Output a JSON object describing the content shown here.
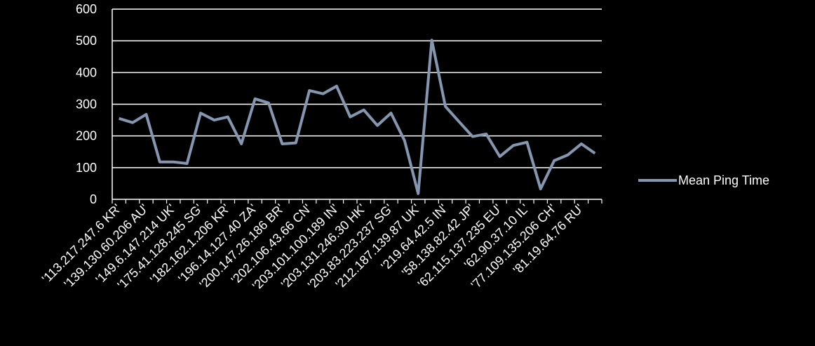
{
  "chart_data": {
    "type": "line",
    "categories": [
      "'113.217.247.6 KR'",
      null,
      "'139.130.60.206 AU'",
      null,
      "'149.6.147.214 UK'",
      null,
      "'175.41.128.245 SG'",
      null,
      "'182.162.1.206 KR'",
      null,
      "'196.14.127.40 ZA'",
      null,
      "'200.147.26.186 BR'",
      null,
      "'202.106.43.66 CN'",
      null,
      "'203.101.100.189 IN'",
      null,
      "'203.131.246.30 HK'",
      null,
      "'203.83.223.237 SG'",
      null,
      "'212.187.139.87 UK'",
      null,
      "'219.64.42.5 IN'",
      null,
      "'58.138.82.42 JP'",
      null,
      "'62.115.137.235 EU'",
      null,
      "'62.90.37.10 IL'",
      null,
      "'77.109.135.206 CH'",
      null,
      "'81.19.64.76 RU'",
      null
    ],
    "series": [
      {
        "name": "Mean Ping Time",
        "color": "#8496b0",
        "values": [
          255,
          242,
          268,
          118,
          118,
          113,
          272,
          250,
          260,
          175,
          317,
          304,
          175,
          178,
          343,
          333,
          357,
          260,
          282,
          233,
          272,
          185,
          18,
          502,
          293,
          245,
          198,
          206,
          135,
          170,
          180,
          33,
          122,
          140,
          175,
          145
        ]
      }
    ],
    "ylim": [
      0,
      600
    ],
    "yticks": [
      0,
      100,
      200,
      300,
      400,
      500,
      600
    ],
    "grid": true,
    "legend": "right"
  }
}
